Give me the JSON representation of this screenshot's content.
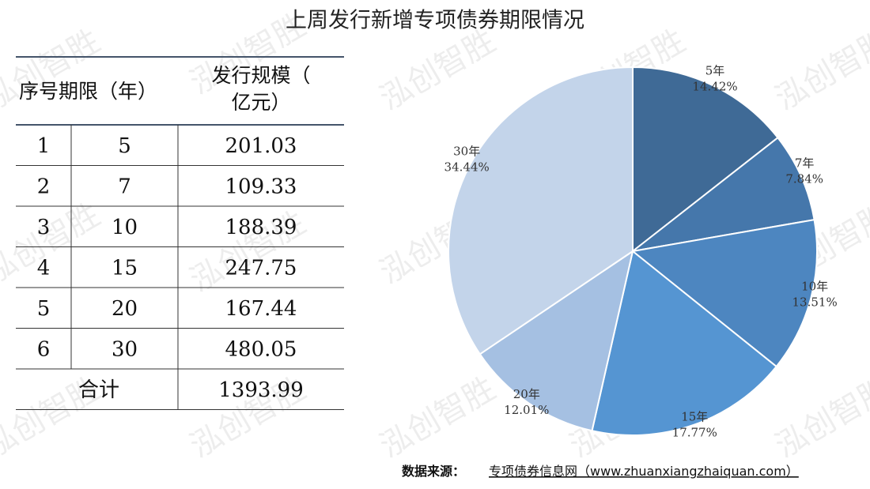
{
  "title": "上周发行新增专项债券期限情况",
  "watermark": "泓创智胜",
  "table": {
    "header": [
      "序号",
      "期限（年）",
      "发行规模（亿元）"
    ],
    "rows": [
      [
        "1",
        "5",
        "201.03"
      ],
      [
        "2",
        "7",
        "109.33"
      ],
      [
        "3",
        "10",
        "188.39"
      ],
      [
        "4",
        "15",
        "247.75"
      ],
      [
        "5",
        "20",
        "167.44"
      ],
      [
        "6",
        "30",
        "480.05"
      ]
    ],
    "total": [
      "合计",
      "1393.99"
    ]
  },
  "chart_data": {
    "type": "pie",
    "categories": [
      "5年",
      "7年",
      "10年",
      "15年",
      "20年",
      "30年"
    ],
    "values": [
      14.42,
      7.84,
      13.51,
      17.77,
      12.01,
      34.44
    ],
    "value_labels": [
      "14.42%",
      "7.84%",
      "13.51%",
      "17.77%",
      "12.01%",
      "34.44%"
    ],
    "colors": [
      "#3f6a96",
      "#4577ab",
      "#4d86c0",
      "#5595d2",
      "#a5c0e2",
      "#c3d4ea"
    ]
  },
  "source": {
    "label": "数据来源：",
    "text": "专项债券信息网（www.zhuanxiangzhaiquan.com）"
  }
}
